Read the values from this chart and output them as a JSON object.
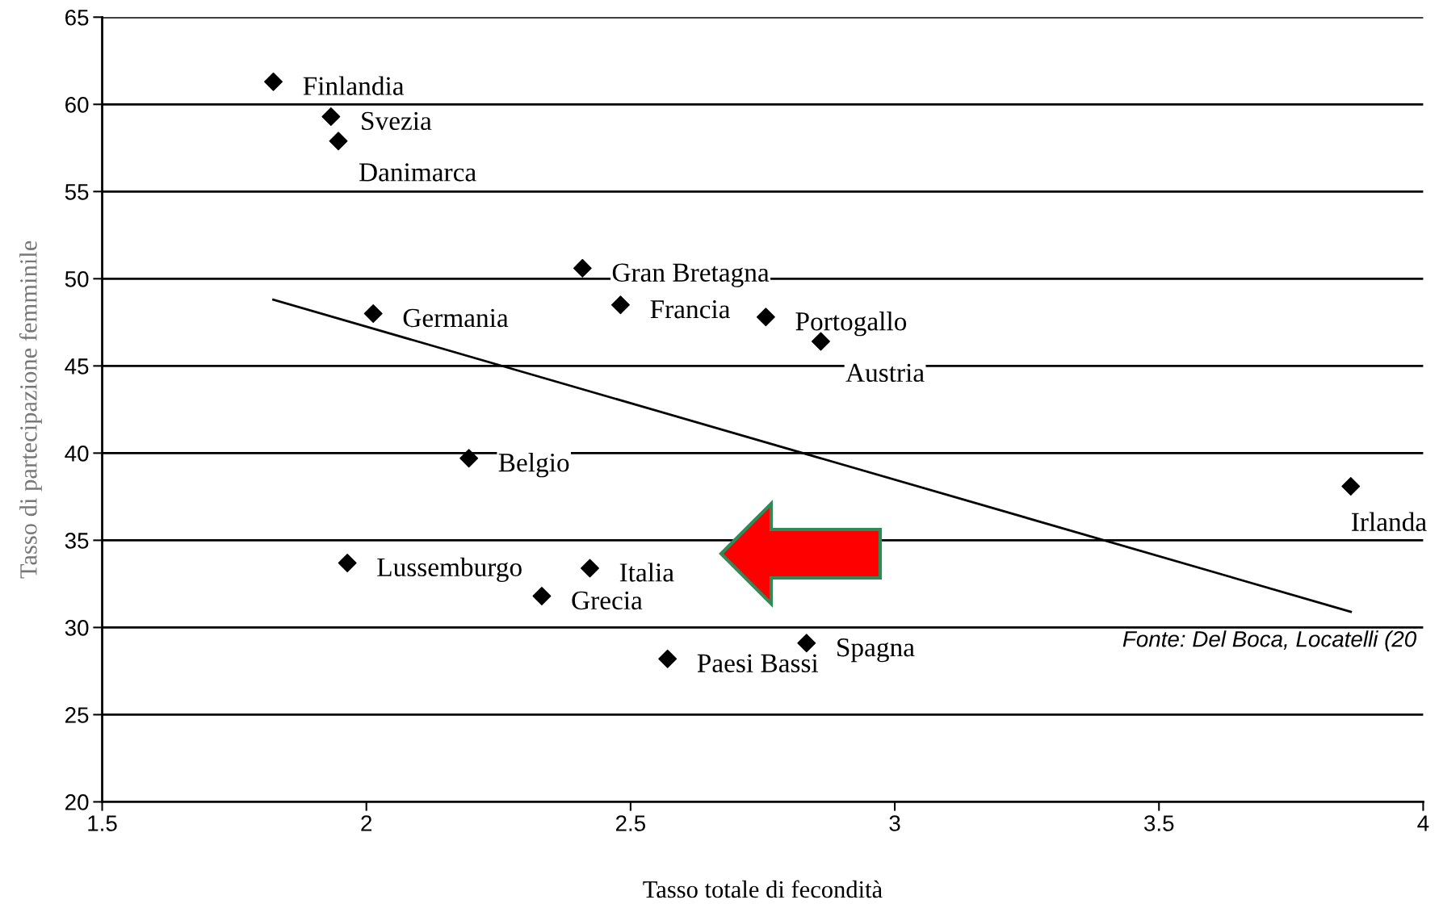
{
  "chart_data": {
    "type": "scatter",
    "xlabel": "Tasso totale di fecondità",
    "ylabel": "Tasso di partecipazione femminile",
    "xlim": [
      1.5,
      4
    ],
    "xticks": [
      1.5,
      2,
      2.5,
      3,
      3.5,
      4
    ],
    "ylim": [
      20,
      65
    ],
    "yticks": [
      20,
      25,
      30,
      35,
      40,
      45,
      50,
      55,
      60,
      65
    ],
    "grid": "y",
    "marker": "diamond",
    "series": [
      {
        "color": "#000000",
        "x": [
          1.824,
          1.933,
          1.947,
          2.409,
          2.481,
          2.013,
          2.756,
          2.86,
          2.194,
          3.863,
          1.964,
          2.423,
          2.332,
          2.833,
          2.57
        ],
        "values": [
          61.3,
          59.3,
          57.9,
          50.6,
          48.5,
          48.0,
          47.8,
          46.4,
          39.7,
          38.1,
          33.7,
          33.4,
          31.8,
          29.1,
          28.2
        ]
      },
      {
        "type": "line",
        "color": "#000000",
        "line_style": "solid",
        "marker": "none",
        "x": [
          1.824,
          3.863
        ],
        "values": [
          48.8,
          30.9
        ]
      }
    ],
    "annotations": [
      {
        "text": "Finlandia",
        "x": 1.824,
        "y": 61.3
      },
      {
        "text": "Svezia",
        "x": 1.933,
        "y": 59.3
      },
      {
        "text": "Danimarca",
        "x": 1.947,
        "y": 57.9
      },
      {
        "text": "Gran Bretagna",
        "x": 2.409,
        "y": 50.6
      },
      {
        "text": "Francia",
        "x": 2.481,
        "y": 48.5
      },
      {
        "text": "Germania",
        "x": 2.013,
        "y": 48.0
      },
      {
        "text": "Portogallo",
        "x": 2.756,
        "y": 47.8
      },
      {
        "text": "Austria",
        "x": 2.86,
        "y": 46.4
      },
      {
        "text": "Belgio",
        "x": 2.194,
        "y": 39.7
      },
      {
        "text": "Irlanda",
        "x": 3.863,
        "y": 38.1
      },
      {
        "text": "Lussemburgo",
        "x": 1.964,
        "y": 33.7
      },
      {
        "text": "Italia",
        "x": 2.423,
        "y": 33.4
      },
      {
        "text": "Grecia",
        "x": 2.332,
        "y": 31.8
      },
      {
        "text": "Spagna",
        "x": 2.833,
        "y": 29.1
      },
      {
        "text": "Paesi Bassi",
        "x": 2.57,
        "y": 28.2
      },
      "Fonte: Del Boca, Locatelli (20"
    ]
  }
}
